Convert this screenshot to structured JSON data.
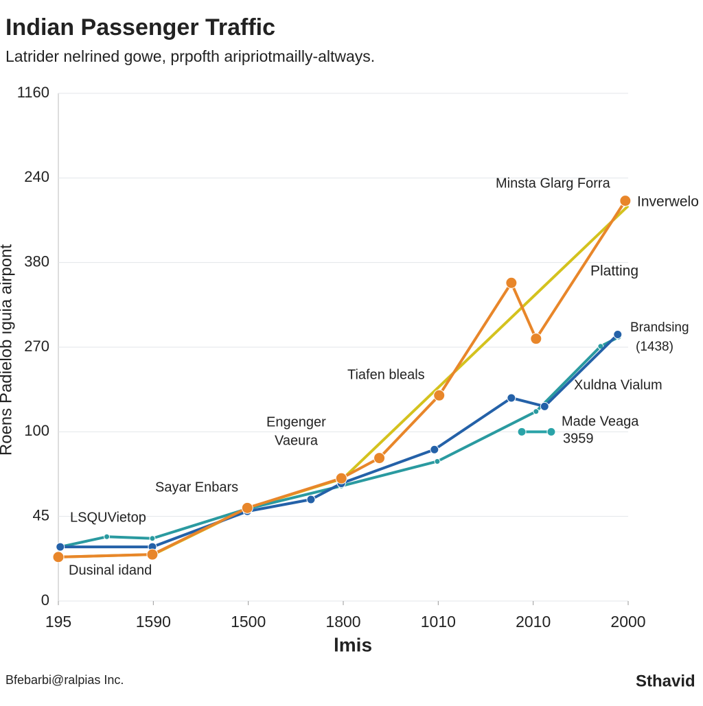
{
  "chart_data": {
    "type": "line",
    "title": "Indian Passenger Traffic",
    "subtitle": "Latrider nelrined gowe, prpofth aripriotmailly-altways.",
    "x_label": "lmis",
    "y_label": "Roens Padielob ıguia airpont",
    "footer": "Bfebarbi@ralpias Inc.",
    "logo": "Sthavid",
    "xlim": [
      0,
      6
    ],
    "xticks": [
      {
        "value": 0,
        "label": "195"
      },
      {
        "value": 1,
        "label": "1590"
      },
      {
        "value": 2,
        "label": "1500"
      },
      {
        "value": 3,
        "label": "1800"
      },
      {
        "value": 4,
        "label": "1010"
      },
      {
        "value": 5,
        "label": "2010"
      },
      {
        "value": 6,
        "label": "2000"
      }
    ],
    "ylim": [
      0,
      6
    ],
    "yticks": [
      {
        "value": 0,
        "label": "0"
      },
      {
        "value": 1,
        "label": "45"
      },
      {
        "value": 2,
        "label": "100"
      },
      {
        "value": 3,
        "label": "270"
      },
      {
        "value": 4,
        "label": "380"
      },
      {
        "value": 5,
        "label": "240"
      },
      {
        "value": 6,
        "label": "1160"
      }
    ],
    "grid": true,
    "series": [
      {
        "color": "#d4c21e",
        "x": [
          0,
          1,
          2,
          3,
          6
        ],
        "values": [
          0.52,
          0.55,
          1.1,
          1.45,
          4.67
        ]
      },
      {
        "color": "#2a9aa0",
        "x": [
          0.02,
          0.51,
          0.99,
          1.99,
          2.98,
          3.99,
          5.03,
          5.71,
          5.9
        ],
        "values": [
          0.64,
          0.76,
          0.74,
          1.09,
          1.36,
          1.65,
          2.24,
          3.01,
          3.12
        ]
      },
      {
        "color": "#2461a8",
        "x": [
          0.02,
          0.99,
          1.99,
          2.66,
          2.98,
          3.96,
          4.77,
          5.12,
          5.89
        ],
        "values": [
          0.64,
          0.64,
          1.06,
          1.2,
          1.39,
          1.79,
          2.4,
          2.3,
          3.15
        ]
      },
      {
        "color": "#e8862a",
        "x": [
          0,
          0.99,
          1.99,
          2.98,
          3.38,
          4.01,
          4.77,
          5.03,
          5.97
        ],
        "values": [
          0.52,
          0.55,
          1.1,
          1.45,
          1.69,
          2.43,
          3.76,
          3.1,
          4.73
        ]
      },
      {
        "color": "#2aa3a8",
        "x": [
          4.88,
          5.19
        ],
        "values": [
          2.0,
          2.0
        ]
      }
    ],
    "annotations": [
      "Minsta Glarg Forra",
      "Inverwelo",
      "Platting",
      "Brandsing",
      "(1438)",
      "Xuldna Vialum",
      "Tiafen bleals",
      "Engenger",
      "Vaeura",
      "Made Veaga",
      "3959",
      "Sayar Enbars",
      "LSQUVietop",
      "Dusinal idand"
    ]
  }
}
